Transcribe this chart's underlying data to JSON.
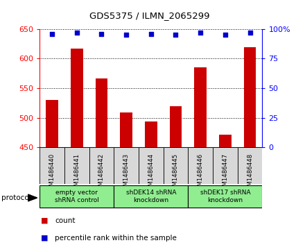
{
  "title": "GDS5375 / ILMN_2065299",
  "samples": [
    "GSM1486440",
    "GSM1486441",
    "GSM1486442",
    "GSM1486443",
    "GSM1486444",
    "GSM1486445",
    "GSM1486446",
    "GSM1486447",
    "GSM1486448"
  ],
  "counts": [
    530,
    617,
    566,
    509,
    494,
    519,
    585,
    471,
    619
  ],
  "percentile_ranks": [
    96,
    97,
    96,
    95,
    96,
    95,
    97,
    95,
    97
  ],
  "ylim_left": [
    450,
    650
  ],
  "ylim_right": [
    0,
    100
  ],
  "yticks_left": [
    450,
    500,
    550,
    600,
    650
  ],
  "yticks_right": [
    0,
    25,
    50,
    75,
    100
  ],
  "bar_color": "#cc0000",
  "scatter_color": "#0000cc",
  "groups": [
    {
      "label": "empty vector\nshRNA control",
      "start": 0,
      "end": 3
    },
    {
      "label": "shDEK14 shRNA\nknockdown",
      "start": 3,
      "end": 6
    },
    {
      "label": "shDEK17 shRNA\nknockdown",
      "start": 6,
      "end": 9
    }
  ],
  "group_color": "#90ee90",
  "sample_bg_color": "#d8d8d8",
  "protocol_label": "protocol",
  "legend_count": "count",
  "legend_pct": "percentile rank within the sample",
  "bar_width": 0.5
}
